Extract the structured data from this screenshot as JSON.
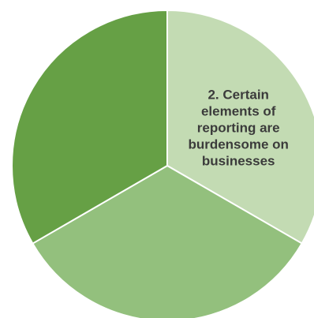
{
  "chart_data": {
    "type": "pie",
    "title": "",
    "slices": [
      {
        "label": "2. Certain elements of reporting are burdensome on businesses",
        "label_lines": [
          "2. Certain",
          "elements of",
          "reporting are",
          "burdensome on",
          "businesses"
        ],
        "value": 33.33,
        "color": "#c3dbb3"
      },
      {
        "label": "",
        "label_lines": [],
        "value": 33.33,
        "color": "#93c07d"
      },
      {
        "label": "",
        "label_lines": [],
        "value": 33.34,
        "color": "#66a045"
      }
    ]
  }
}
